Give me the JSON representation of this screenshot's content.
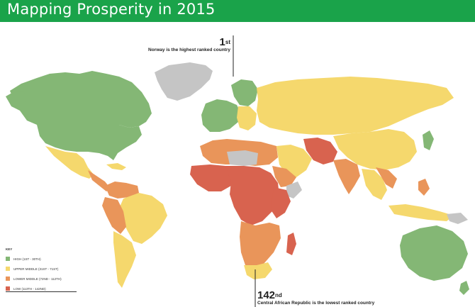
{
  "header": {
    "title": "Mapping Prosperity in 2015",
    "bg": "#1aa34a"
  },
  "callouts": {
    "top": {
      "rank": "1",
      "rank_suffix": "st",
      "text": "Norway is the highest ranked country"
    },
    "bottom": {
      "rank": "142",
      "rank_suffix": "nd",
      "text": "Central African Republic is the lowest ranked country"
    }
  },
  "legend": {
    "title": "KEY",
    "items": [
      {
        "label": "HIGH (1ST - 30TH)",
        "color": "#84b775"
      },
      {
        "label": "UPPER MIDDLE (31ST - 71ST)",
        "color": "#f5d86d"
      },
      {
        "label": "LOWER MIDDLE (72ND - 112TH)",
        "color": "#e9955a"
      },
      {
        "label": "LOW (113TH - 142ND)",
        "color": "#d8634f"
      }
    ]
  },
  "colors": {
    "no_data": "#c5c5c5",
    "water": "#ffffff"
  }
}
